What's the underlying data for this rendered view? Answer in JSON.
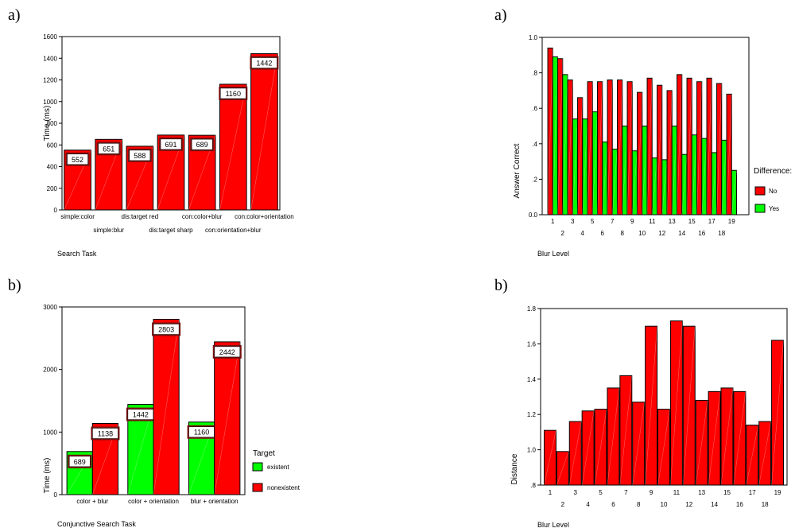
{
  "panels": {
    "top_left": "a)",
    "bottom_left": "b)",
    "top_right": "a)",
    "bottom_right": "b)"
  },
  "colors": {
    "red": "#ff0000",
    "green": "#00ff00",
    "outline": "#000000"
  },
  "chart_data": [
    {
      "id": "search-task",
      "type": "bar",
      "title": "",
      "xlabel": "Search Task",
      "ylabel": "Time (ms)",
      "ylim": [
        0,
        1600
      ],
      "yticks": [
        "0",
        "200",
        "400",
        "600",
        "800",
        "1000",
        "1200",
        "1400",
        "1600"
      ],
      "categories": [
        "simple:color",
        "simple:blur",
        "dis:target red",
        "dis:target sharp",
        "con:color+blur",
        "con:orientation+blur",
        "con:color+orientation"
      ],
      "values": [
        552,
        651,
        588,
        691,
        689,
        1160,
        1442
      ],
      "data_labels": [
        "552",
        "651",
        "588",
        "691",
        "689",
        "1160",
        "1442"
      ]
    },
    {
      "id": "conjunctive-search",
      "type": "bar",
      "title": "",
      "xlabel": "Conjunctive Search Task",
      "ylabel": "Time (ms)",
      "ylim": [
        0,
        3000
      ],
      "yticks": [
        "0",
        "1000",
        "2000",
        "3000"
      ],
      "categories": [
        "color + blur",
        "color + orientation",
        "blur + orientation"
      ],
      "legend_title": "Target",
      "legend_placement": "right",
      "series": [
        {
          "name": "existent",
          "color": "#00ff00",
          "values": [
            689,
            1442,
            1160
          ],
          "data_labels": [
            "689",
            "1442",
            "1160"
          ]
        },
        {
          "name": "nonexistent",
          "color": "#ff0000",
          "values": [
            1138,
            2803,
            2442
          ],
          "data_labels": [
            "1138",
            "2803",
            "2442"
          ]
        }
      ]
    },
    {
      "id": "answer-correct",
      "type": "bar",
      "title": "",
      "xlabel": "Blur  Level",
      "ylabel": "Answer Correct",
      "ylim": [
        0,
        1.0
      ],
      "yticks": [
        "0.0",
        ".2",
        ".4",
        ".6",
        ".8",
        "1.0"
      ],
      "categories": [
        "1",
        "2",
        "3",
        "4",
        "5",
        "6",
        "7",
        "8",
        "9",
        "10",
        "11",
        "12",
        "13",
        "14",
        "15",
        "16",
        "17",
        "18",
        "19"
      ],
      "legend_title": "Difference:",
      "legend_placement": "right",
      "series": [
        {
          "name": "No",
          "color": "#ff0000",
          "values": [
            0.94,
            0.88,
            0.76,
            0.66,
            0.75,
            0.75,
            0.76,
            0.76,
            0.75,
            0.69,
            0.77,
            0.73,
            0.7,
            0.79,
            0.77,
            0.75,
            0.77,
            0.74,
            0.68
          ]
        },
        {
          "name": "Yes",
          "color": "#00ff00",
          "values": [
            0.89,
            0.79,
            0.54,
            0.54,
            0.58,
            0.41,
            0.37,
            0.5,
            0.36,
            0.5,
            0.32,
            0.31,
            0.5,
            0.34,
            0.45,
            0.43,
            0.35,
            0.42,
            0.25
          ]
        }
      ]
    },
    {
      "id": "distance",
      "type": "bar",
      "title": "",
      "xlabel": "Blur Level",
      "ylabel": "Distance",
      "ylim": [
        0.8,
        1.8
      ],
      "yticks": [
        ".8",
        "1.0",
        "1.2",
        "1.4",
        "1.6",
        "1.8"
      ],
      "categories": [
        "1",
        "2",
        "3",
        "4",
        "5",
        "6",
        "7",
        "8",
        "9",
        "10",
        "11",
        "12",
        "13",
        "14",
        "15",
        "16",
        "17",
        "18",
        "19"
      ],
      "values": [
        1.11,
        0.99,
        1.16,
        1.22,
        1.23,
        1.35,
        1.42,
        1.27,
        1.7,
        1.23,
        1.73,
        1.7,
        1.28,
        1.33,
        1.35,
        1.33,
        1.14,
        1.16,
        1.62
      ]
    }
  ]
}
